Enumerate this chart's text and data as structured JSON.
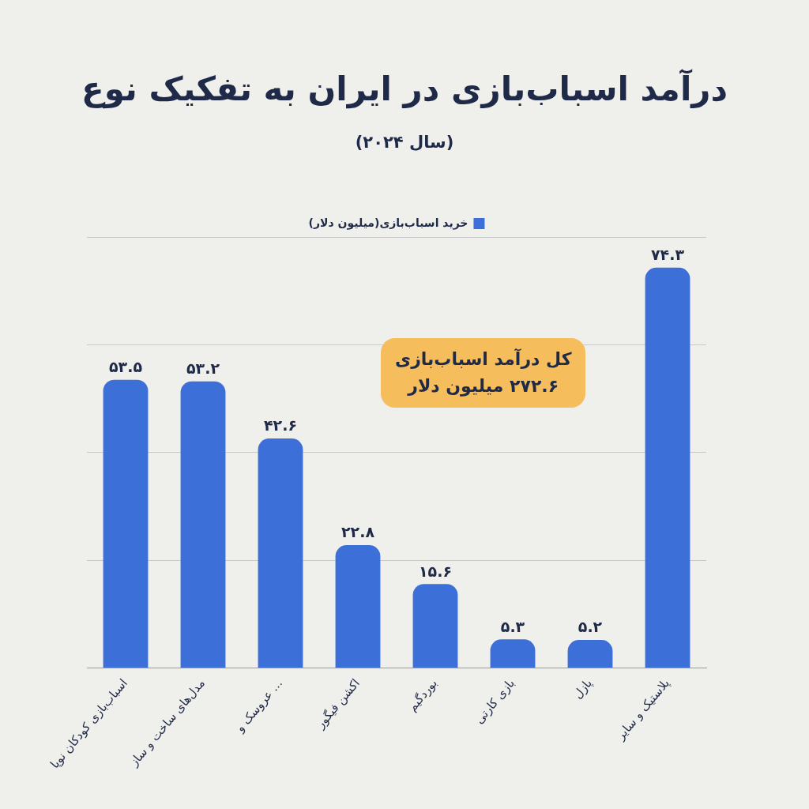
{
  "chart_data": {
    "type": "bar",
    "title": "درآمد اسباب‌بازی در ایران به تفکیک نوع",
    "subtitle": "(سال ۲۰۲۴)",
    "categories": [
      "اسباب‌بازی کودکان نوپا",
      "مدل‌های ساخت و ساز",
      "عروسک و ...",
      "اکشن فیگور",
      "بوردگیم",
      "بازی کارتی",
      "پازل",
      "پلاستیک و سایر"
    ],
    "series": [
      {
        "name": "خرید اسباب‌بازی(میلیون دلار)",
        "color": "#3d6fd8",
        "values": [
          53.5,
          53.2,
          42.6,
          22.8,
          15.6,
          5.3,
          5.2,
          74.3
        ],
        "value_labels": [
          "۵۳.۵",
          "۵۳.۲",
          "۴۲.۶",
          "۲۲.۸",
          "۱۵.۶",
          "۵.۳",
          "۵.۲",
          "۷۴.۳"
        ]
      }
    ],
    "ylim": [
      0,
      80
    ],
    "yticks": [
      {
        "value": 0,
        "label": null
      },
      {
        "value": 20,
        "label": null
      },
      {
        "value": 40,
        "label": null
      },
      {
        "value": 60,
        "label": null
      },
      {
        "value": 80,
        "label": null
      }
    ],
    "grid": "y",
    "legend": "top",
    "tick_labels": "x",
    "annotations": [
      "کل درآمد اسباب‌بازی\n۲۷۲.۶ میلیون دلار"
    ]
  }
}
